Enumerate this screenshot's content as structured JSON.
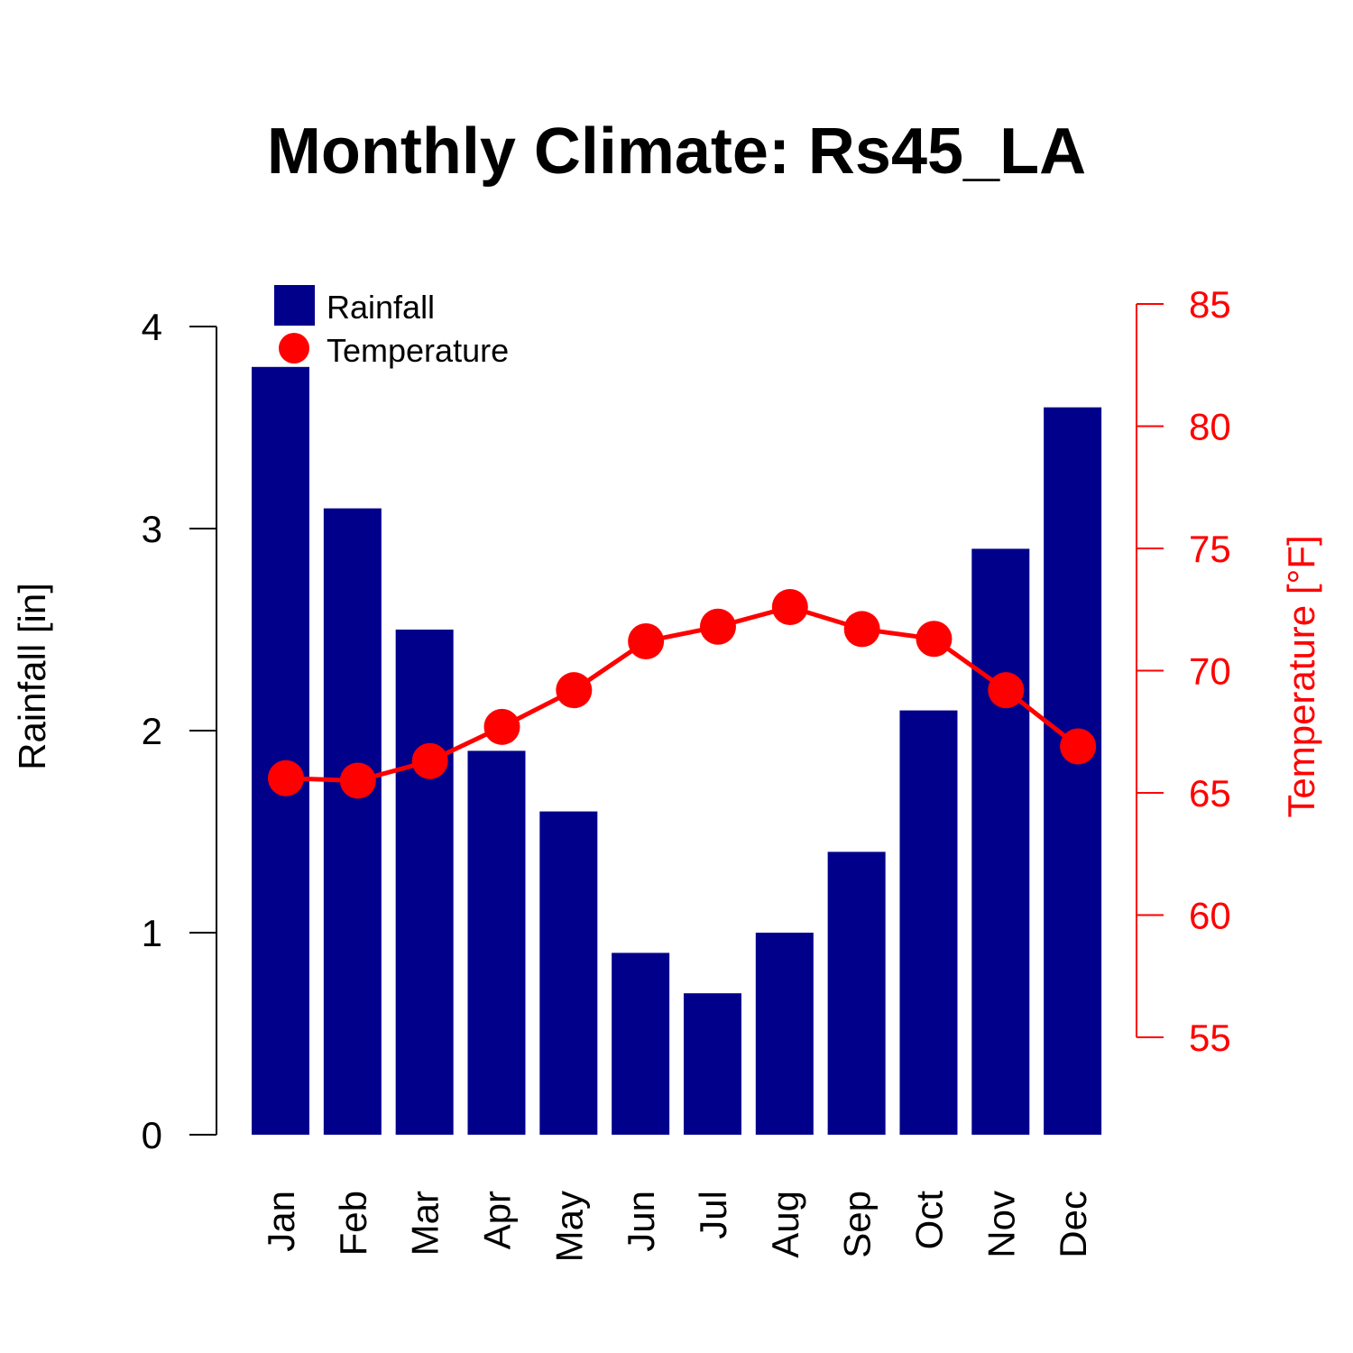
{
  "chart_data": {
    "type": "bar",
    "title": "Monthly Climate: Rs45_LA",
    "categories": [
      "Jan",
      "Feb",
      "Mar",
      "Apr",
      "May",
      "Jun",
      "Jul",
      "Aug",
      "Sep",
      "Oct",
      "Nov",
      "Dec"
    ],
    "series": [
      {
        "name": "Rainfall",
        "type": "bar",
        "axis": "left",
        "color": "#00008B",
        "values": [
          3.8,
          3.1,
          2.5,
          1.9,
          1.6,
          0.9,
          0.7,
          1.0,
          1.4,
          2.1,
          2.9,
          3.6
        ]
      },
      {
        "name": "Temperature",
        "type": "line",
        "marker": "circle",
        "axis": "right",
        "color": "#FF0000",
        "values": [
          65.6,
          65.5,
          66.3,
          67.7,
          69.2,
          71.2,
          71.8,
          72.6,
          71.7,
          71.3,
          69.2,
          66.9
        ]
      }
    ],
    "y_left": {
      "label": "Rainfall [in]",
      "lim": [
        0,
        4
      ],
      "ticks": [
        0,
        1,
        2,
        3,
        4
      ],
      "color": "#000000"
    },
    "y_right": {
      "label": "Temperature [°F]",
      "lim": [
        55,
        85
      ],
      "ticks": [
        55,
        60,
        65,
        70,
        75,
        80,
        85
      ],
      "color": "#FF0000"
    },
    "x_tick_rotation": "vertical",
    "legend": {
      "position": "top-left",
      "entries": [
        "Rainfall",
        "Temperature"
      ]
    },
    "grid": false
  }
}
